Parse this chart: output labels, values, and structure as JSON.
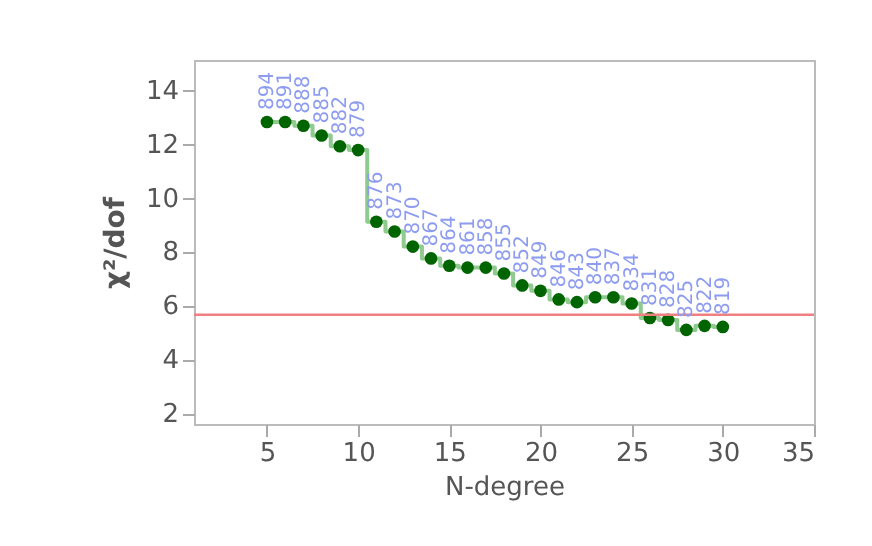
{
  "chart_data": {
    "type": "step",
    "xlabel": "N-degree",
    "ylabel": "χ²/dof",
    "x": [
      5,
      6,
      7,
      8,
      9,
      10,
      11,
      12,
      13,
      14,
      15,
      16,
      17,
      18,
      19,
      20,
      21,
      22,
      23,
      24,
      25,
      26,
      27,
      28,
      29,
      30
    ],
    "series": [
      {
        "type": "step",
        "color": "#8fca8f",
        "marker": "none",
        "values": [
          12.8,
          12.8,
          12.66,
          12.3,
          11.9,
          11.76,
          9.1,
          8.74,
          8.18,
          7.74,
          7.47,
          7.4,
          7.4,
          7.18,
          6.74,
          6.54,
          6.22,
          6.12,
          6.3,
          6.3,
          6.07,
          5.53,
          5.46,
          5.09,
          5.24,
          5.2
        ]
      },
      {
        "type": "scatter",
        "color": "#006400",
        "marker": "circle",
        "values": [
          12.8,
          12.8,
          12.66,
          12.3,
          11.9,
          11.76,
          9.1,
          8.74,
          8.18,
          7.74,
          7.47,
          7.4,
          7.4,
          7.18,
          6.74,
          6.54,
          6.22,
          6.12,
          6.3,
          6.3,
          6.07,
          5.53,
          5.46,
          5.09,
          5.24,
          5.2
        ]
      }
    ],
    "annotations": [
      {
        "text": "894",
        "x": 5,
        "y": 12.8
      },
      {
        "text": "891",
        "x": 6,
        "y": 12.8
      },
      {
        "text": "888",
        "x": 7,
        "y": 12.66
      },
      {
        "text": "885",
        "x": 8,
        "y": 12.3
      },
      {
        "text": "882",
        "x": 9,
        "y": 11.9
      },
      {
        "text": "879",
        "x": 10,
        "y": 11.76
      },
      {
        "text": "876",
        "x": 11,
        "y": 9.1
      },
      {
        "text": "873",
        "x": 12,
        "y": 8.74
      },
      {
        "text": "870",
        "x": 13,
        "y": 8.18
      },
      {
        "text": "867",
        "x": 14,
        "y": 7.74
      },
      {
        "text": "864",
        "x": 15,
        "y": 7.47
      },
      {
        "text": "861",
        "x": 16,
        "y": 7.4
      },
      {
        "text": "858",
        "x": 17,
        "y": 7.4
      },
      {
        "text": "855",
        "x": 18,
        "y": 7.18
      },
      {
        "text": "852",
        "x": 19,
        "y": 6.74
      },
      {
        "text": "849",
        "x": 20,
        "y": 6.54
      },
      {
        "text": "846",
        "x": 21,
        "y": 6.22
      },
      {
        "text": "843",
        "x": 22,
        "y": 6.12
      },
      {
        "text": "840",
        "x": 23,
        "y": 6.3
      },
      {
        "text": "837",
        "x": 24,
        "y": 6.3
      },
      {
        "text": "834",
        "x": 25,
        "y": 6.07
      },
      {
        "text": "831",
        "x": 26,
        "y": 5.53
      },
      {
        "text": "828",
        "x": 27,
        "y": 5.46
      },
      {
        "text": "825",
        "x": 28,
        "y": 5.09
      },
      {
        "text": "822",
        "x": 29,
        "y": 5.24
      },
      {
        "text": "819",
        "x": 30,
        "y": 5.2
      }
    ],
    "ref_lines": [
      {
        "axis": "y",
        "value": 5.65,
        "color": "#f08080"
      }
    ],
    "xlim": [
      1,
      35
    ],
    "xticks": [
      5,
      10,
      15,
      20,
      25,
      30,
      35
    ],
    "ylim": [
      1.6,
      15.1
    ],
    "yticks": [
      2,
      4,
      6,
      8,
      10,
      12,
      14
    ],
    "grid": false
  }
}
